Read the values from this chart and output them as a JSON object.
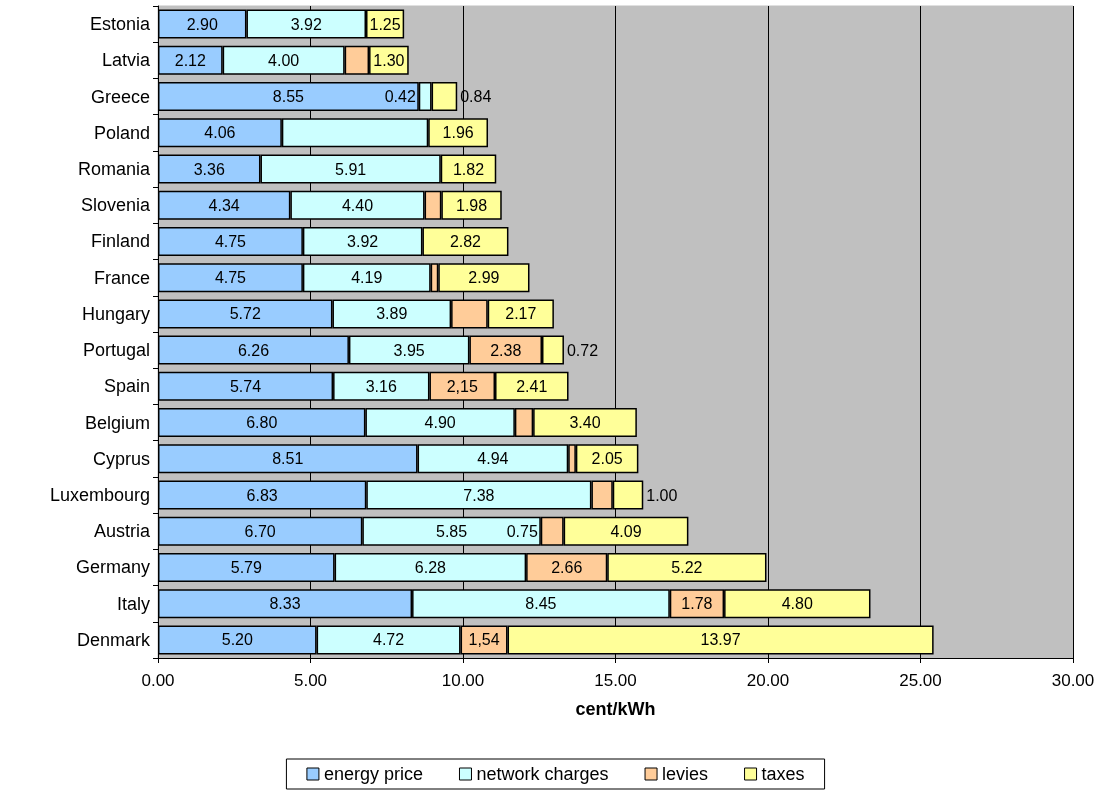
{
  "chart_data": {
    "type": "bar",
    "orientation": "horizontal",
    "stacked": true,
    "xlabel": "cent/kWh",
    "categories": [
      "Estonia",
      "Latvia",
      "Greece",
      "Poland",
      "Romania",
      "Slovenia",
      "Finland",
      "France",
      "Hungary",
      "Portugal",
      "Spain",
      "Belgium",
      "Cyprus",
      "Luxembourg",
      "Austria",
      "Germany",
      "Italy",
      "Denmark"
    ],
    "series": [
      {
        "name": "energy price",
        "color": "#99ccff",
        "values": [
          2.9,
          2.12,
          8.55,
          4.06,
          3.36,
          4.34,
          4.75,
          4.75,
          5.72,
          6.26,
          5.74,
          6.8,
          8.51,
          6.83,
          6.7,
          5.79,
          8.33,
          5.2
        ],
        "value_labels": [
          "2.90",
          "2.12",
          "8.55",
          "4.06",
          "3.36",
          "4.34",
          "4.75",
          "4.75",
          "5.72",
          "6.26",
          "5.74",
          "6.80",
          "8.51",
          "6.83",
          "6.70",
          "5.79",
          "8.33",
          "5.20"
        ]
      },
      {
        "name": "network charges",
        "color": "#ccffff",
        "values": [
          3.92,
          4.0,
          0.42,
          4.8,
          5.91,
          4.4,
          3.92,
          4.19,
          3.89,
          3.95,
          3.16,
          4.9,
          4.94,
          7.38,
          5.85,
          6.28,
          8.45,
          4.72
        ],
        "value_labels": [
          "3.92",
          "4.00",
          "0.42",
          null,
          "5.91",
          "4.40",
          "3.92",
          "4.19",
          "3.89",
          "3.95",
          "3.16",
          "4.90",
          "4.94",
          "7.38",
          "5.85",
          "6.28",
          "8.45",
          "4.72"
        ]
      },
      {
        "name": "levies",
        "color": "#ffcc99",
        "values": [
          null,
          0.8,
          null,
          null,
          null,
          0.55,
          null,
          0.25,
          1.2,
          2.38,
          2.15,
          0.6,
          0.25,
          0.7,
          0.75,
          2.66,
          1.78,
          1.54
        ],
        "value_labels": [
          null,
          null,
          null,
          null,
          null,
          null,
          null,
          null,
          null,
          "2.38",
          "2,15",
          null,
          null,
          null,
          "0.75",
          "2.66",
          "1.78",
          "1,54"
        ]
      },
      {
        "name": "taxes",
        "color": "#ffff99",
        "values": [
          1.25,
          1.3,
          0.84,
          1.96,
          1.82,
          1.98,
          2.82,
          2.99,
          2.17,
          0.72,
          2.41,
          3.4,
          2.05,
          1.0,
          4.09,
          5.22,
          4.8,
          13.97
        ],
        "value_labels": [
          "1.25",
          "1.30",
          "0.84",
          "1.96",
          "1.82",
          "1.98",
          "2.82",
          "2.99",
          "2.17",
          "0.72",
          "2.41",
          "3.40",
          "2.05",
          "1.00",
          "4.09",
          "5.22",
          "4.80",
          "13.97"
        ]
      }
    ],
    "xlim": [
      0,
      30
    ],
    "xticks": [
      {
        "value": 0,
        "label": "0.00"
      },
      {
        "value": 5,
        "label": "5.00"
      },
      {
        "value": 10,
        "label": "10.00"
      },
      {
        "value": 15,
        "label": "15.00"
      },
      {
        "value": 20,
        "label": "20.00"
      },
      {
        "value": 25,
        "label": "25.00"
      },
      {
        "value": 30,
        "label": "30.00"
      }
    ],
    "grid": "x",
    "legend": "bottom"
  }
}
